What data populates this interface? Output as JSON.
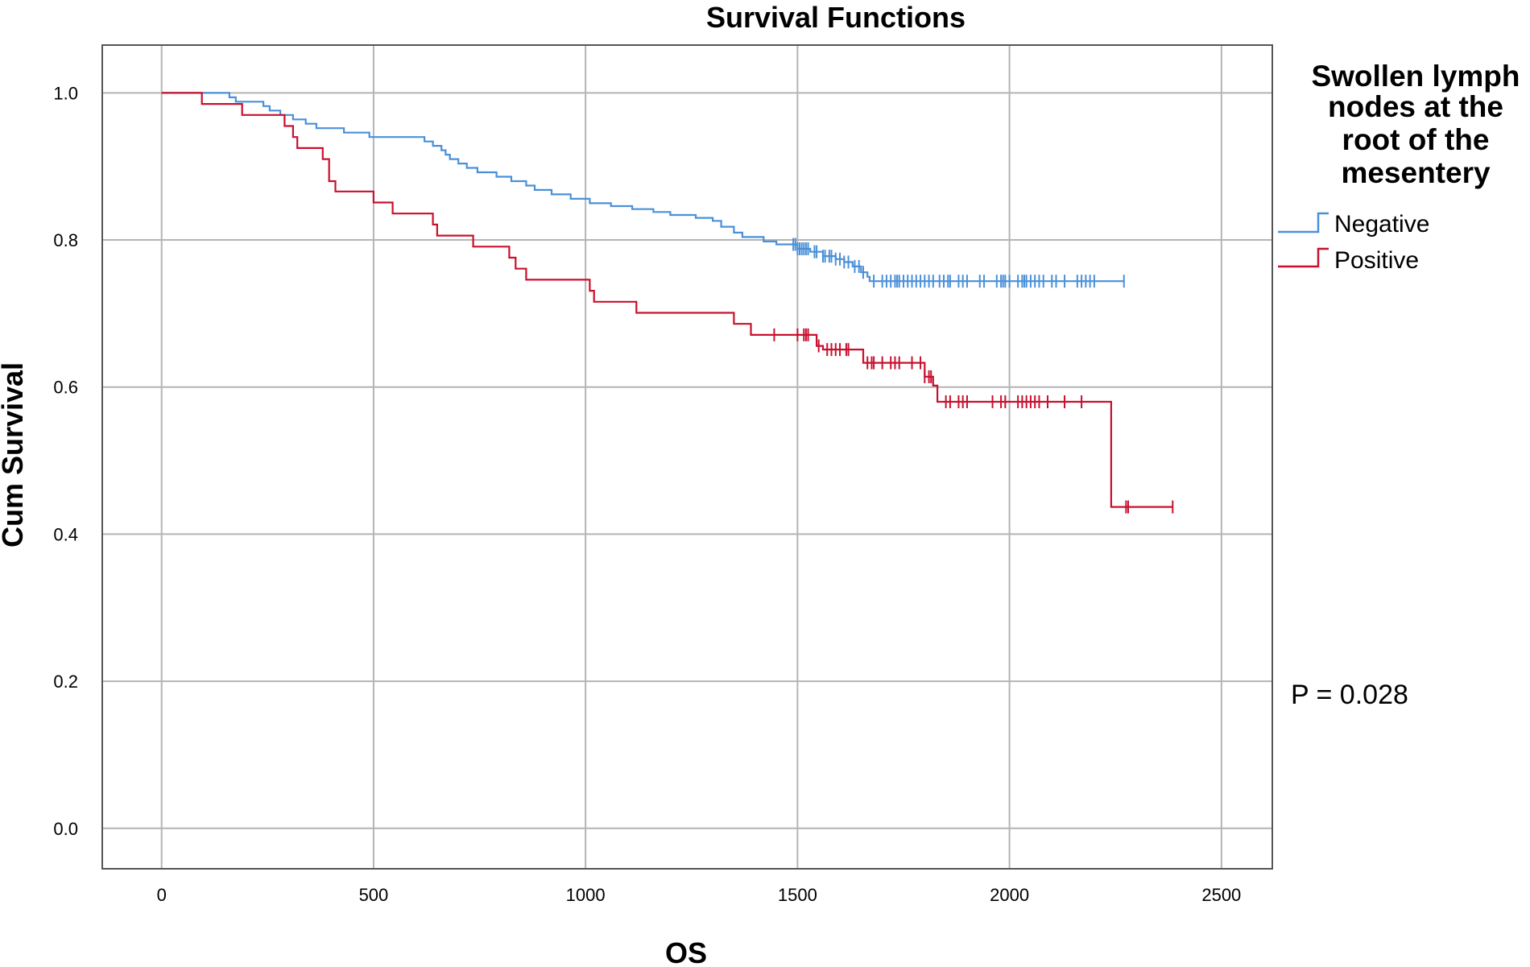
{
  "chart_data": {
    "type": "line",
    "title": "Survival Functions",
    "xlabel": "OS",
    "ylabel": "Cum Survival",
    "xlim": [
      -140,
      2620
    ],
    "ylim": [
      -0.055,
      1.065
    ],
    "xticks": [
      0,
      500,
      1000,
      1500,
      2000,
      2500
    ],
    "yticks": [
      0.0,
      0.2,
      0.4,
      0.6,
      0.8,
      1.0
    ],
    "xtick_labels": [
      "0",
      "500",
      "1000",
      "1500",
      "2000",
      "2500"
    ],
    "ytick_labels": [
      "0.0",
      "0.2",
      "0.4",
      "0.6",
      "0.8",
      "1.0"
    ],
    "grid": true,
    "legend": {
      "title": [
        "Swollen lymph",
        "nodes at the",
        "root of the",
        "mesentery"
      ],
      "placement": "right"
    },
    "annotation": "P = 0.028",
    "series": [
      {
        "name": "Negative",
        "color": "#4a90d9",
        "steps": [
          [
            0,
            1.0
          ],
          [
            160,
            0.994
          ],
          [
            175,
            0.988
          ],
          [
            240,
            0.982
          ],
          [
            255,
            0.976
          ],
          [
            280,
            0.97
          ],
          [
            310,
            0.964
          ],
          [
            340,
            0.958
          ],
          [
            365,
            0.952
          ],
          [
            430,
            0.946
          ],
          [
            490,
            0.94
          ],
          [
            620,
            0.934
          ],
          [
            640,
            0.928
          ],
          [
            660,
            0.922
          ],
          [
            670,
            0.916
          ],
          [
            680,
            0.91
          ],
          [
            700,
            0.904
          ],
          [
            720,
            0.898
          ],
          [
            745,
            0.892
          ],
          [
            790,
            0.886
          ],
          [
            825,
            0.88
          ],
          [
            860,
            0.874
          ],
          [
            880,
            0.868
          ],
          [
            920,
            0.862
          ],
          [
            965,
            0.856
          ],
          [
            1010,
            0.85
          ],
          [
            1060,
            0.846
          ],
          [
            1110,
            0.842
          ],
          [
            1160,
            0.838
          ],
          [
            1200,
            0.834
          ],
          [
            1260,
            0.83
          ],
          [
            1300,
            0.826
          ],
          [
            1320,
            0.818
          ],
          [
            1350,
            0.81
          ],
          [
            1370,
            0.804
          ],
          [
            1420,
            0.798
          ],
          [
            1450,
            0.794
          ],
          [
            1500,
            0.788
          ],
          [
            1530,
            0.784
          ],
          [
            1560,
            0.778
          ],
          [
            1590,
            0.774
          ],
          [
            1610,
            0.77
          ],
          [
            1630,
            0.764
          ],
          [
            1650,
            0.756
          ],
          [
            1665,
            0.75
          ],
          [
            1670,
            0.744
          ]
        ],
        "end": 2270,
        "censored": [
          1490,
          1495,
          1500,
          1505,
          1510,
          1515,
          1520,
          1525,
          1540,
          1545,
          1560,
          1565,
          1575,
          1580,
          1590,
          1600,
          1610,
          1620,
          1635,
          1645,
          1655,
          1680,
          1700,
          1710,
          1720,
          1730,
          1735,
          1740,
          1750,
          1760,
          1770,
          1780,
          1790,
          1800,
          1810,
          1820,
          1835,
          1845,
          1855,
          1860,
          1880,
          1890,
          1900,
          1930,
          1940,
          1970,
          1980,
          1985,
          1990,
          2000,
          2020,
          2030,
          2035,
          2040,
          2050,
          2060,
          2070,
          2080,
          2100,
          2110,
          2130,
          2160,
          2170,
          2180,
          2190,
          2200,
          2270
        ]
      },
      {
        "name": "Positive",
        "color": "#c8102e",
        "steps": [
          [
            0,
            1.0
          ],
          [
            95,
            0.985
          ],
          [
            190,
            0.97
          ],
          [
            290,
            0.955
          ],
          [
            310,
            0.94
          ],
          [
            320,
            0.925
          ],
          [
            380,
            0.91
          ],
          [
            395,
            0.88
          ],
          [
            410,
            0.866
          ],
          [
            500,
            0.851
          ],
          [
            545,
            0.836
          ],
          [
            640,
            0.821
          ],
          [
            650,
            0.806
          ],
          [
            735,
            0.791
          ],
          [
            820,
            0.776
          ],
          [
            835,
            0.761
          ],
          [
            860,
            0.746
          ],
          [
            1010,
            0.731
          ],
          [
            1020,
            0.716
          ],
          [
            1120,
            0.701
          ],
          [
            1350,
            0.686
          ],
          [
            1390,
            0.671
          ],
          [
            1545,
            0.656
          ],
          [
            1560,
            0.651
          ],
          [
            1655,
            0.633
          ],
          [
            1800,
            0.614
          ],
          [
            1820,
            0.602
          ],
          [
            1830,
            0.58
          ],
          [
            2240,
            0.437
          ]
        ],
        "end": 2385,
        "censored": [
          1445,
          1500,
          1515,
          1520,
          1525,
          1550,
          1570,
          1580,
          1590,
          1600,
          1615,
          1620,
          1665,
          1675,
          1680,
          1700,
          1720,
          1730,
          1740,
          1770,
          1790,
          1800,
          1810,
          1815,
          1850,
          1860,
          1880,
          1890,
          1900,
          1960,
          1980,
          1990,
          2020,
          2030,
          2040,
          2050,
          2060,
          2070,
          2090,
          2130,
          2170,
          2275,
          2280,
          2385
        ]
      }
    ]
  }
}
